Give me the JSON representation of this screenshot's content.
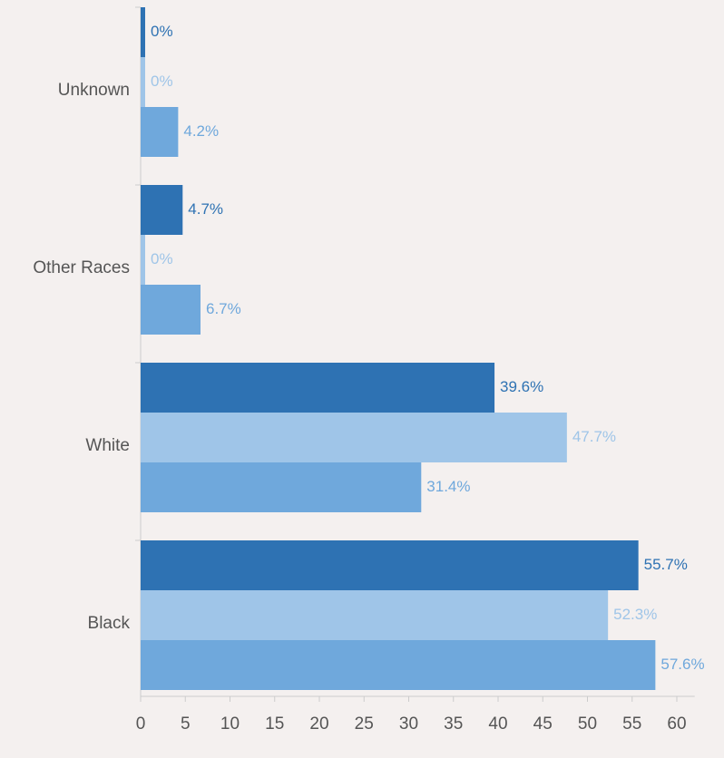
{
  "chart_data": {
    "type": "bar",
    "orientation": "horizontal",
    "categories": [
      "Unknown",
      "Other Races",
      "White",
      "Black"
    ],
    "series": [
      {
        "color": "#2e72b3",
        "values": [
          0.0,
          4.7,
          39.6,
          55.7
        ],
        "labels": [
          "0%",
          "4.7%",
          "39.6%",
          "55.7%"
        ]
      },
      {
        "color": "#9fc5e8",
        "values": [
          0.0,
          0.0,
          47.7,
          52.3
        ],
        "labels": [
          "0%",
          "0%",
          "47.7%",
          "52.3%"
        ]
      },
      {
        "color": "#6fa8dc",
        "values": [
          4.2,
          6.7,
          31.4,
          57.6
        ],
        "labels": [
          "4.2%",
          "6.7%",
          "31.4%",
          "57.6%"
        ]
      }
    ],
    "xaxis": {
      "ticks": [
        0,
        5,
        10,
        15,
        20,
        25,
        30,
        35,
        40,
        45,
        50,
        55,
        60
      ],
      "tick_labels": [
        "0",
        "5",
        "10",
        "15",
        "20",
        "25",
        "30",
        "35",
        "40",
        "45",
        "50",
        "55",
        "60"
      ],
      "range": [
        0,
        62
      ]
    },
    "title": "",
    "xlabel": "",
    "ylabel": "",
    "grid": false,
    "legend": "none"
  },
  "colors": {
    "background": "#f4f0ef",
    "axis": "#cccccc",
    "text": "#555555"
  }
}
